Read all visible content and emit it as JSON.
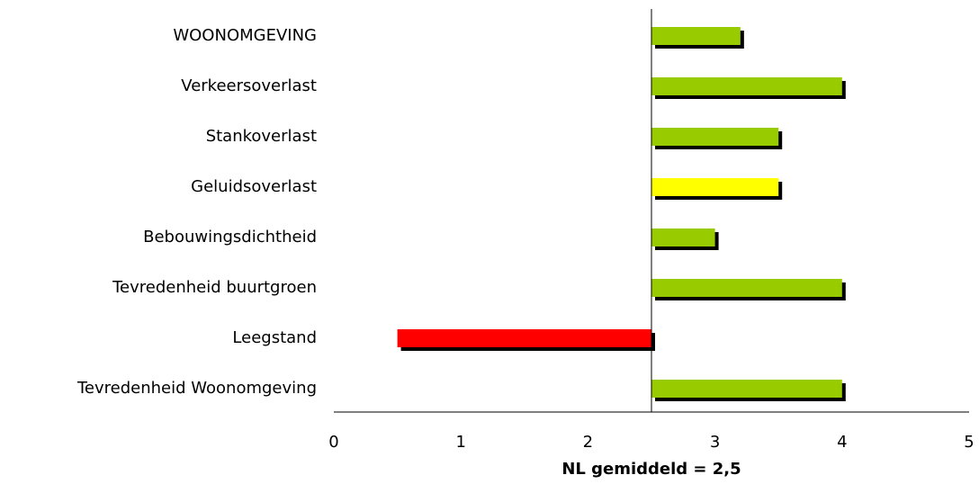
{
  "chart_data": {
    "type": "bar",
    "orientation": "horizontal",
    "categories": [
      "WOONOMGEVING",
      "Verkeersoverlast",
      "Stankoverlast",
      "Geluidsoverlast",
      "Bebouwingsdichtheid",
      "Tevredenheid buurtgroen",
      "Leegstand",
      "Tevredenheid Woonomgeving"
    ],
    "values": [
      3.2,
      4.0,
      3.5,
      3.5,
      3.0,
      4.0,
      0.5,
      4.0
    ],
    "colors": [
      "#99cc00",
      "#99cc00",
      "#99cc00",
      "#ffff00",
      "#99cc00",
      "#99cc00",
      "#ff0000",
      "#99cc00"
    ],
    "baseline": 2.5,
    "xlabel": "NL gemiddeld = 2,5",
    "xlim": [
      0,
      5
    ],
    "xticks": [
      0,
      1,
      2,
      3,
      4,
      5
    ]
  }
}
